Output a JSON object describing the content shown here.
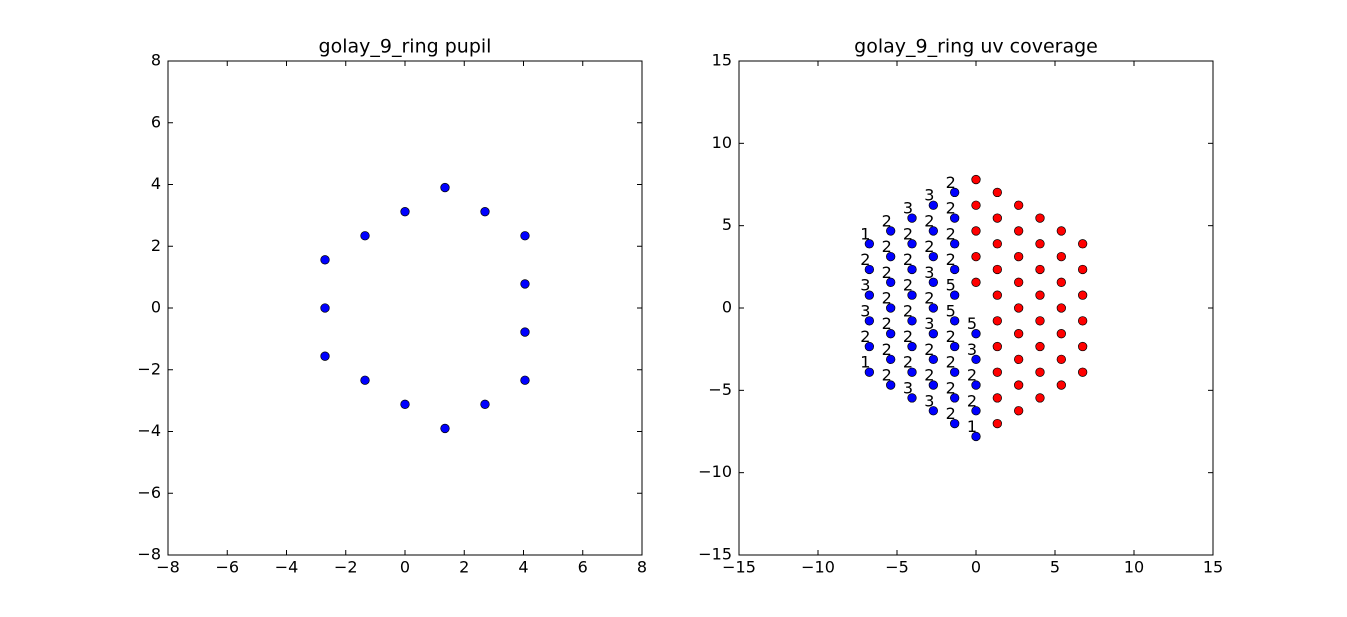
{
  "chart_data": [
    {
      "type": "scatter",
      "title": "golay_9_ring pupil",
      "xlim": [
        -8,
        8
      ],
      "ylim": [
        -8,
        8
      ],
      "xticks": [
        {
          "value": -8,
          "label": "−8"
        },
        {
          "value": -6,
          "label": "−6"
        },
        {
          "value": -4,
          "label": "−4"
        },
        {
          "value": -2,
          "label": "−2"
        },
        0,
        2,
        4,
        6,
        8
      ],
      "yticks": [
        {
          "value": -8,
          "label": "−8"
        },
        {
          "value": -6,
          "label": "−6"
        },
        {
          "value": -4,
          "label": "−4"
        },
        {
          "value": -2,
          "label": "−2"
        },
        0,
        2,
        4,
        6,
        8
      ],
      "series": [
        {
          "color": "#0000ff",
          "x": [
            1.35,
            0,
            2.7,
            -1.35,
            4.05,
            -2.7,
            4.05,
            -2.7,
            4.05,
            -2.7,
            -1.35,
            4.05,
            0,
            2.7,
            1.35
          ],
          "values": [
            3.9,
            3.12,
            3.12,
            2.34,
            2.34,
            1.56,
            0.78,
            0,
            -0.78,
            -1.56,
            -2.34,
            -2.34,
            -3.12,
            -3.12,
            -3.9
          ]
        }
      ]
    },
    {
      "type": "scatter",
      "title": "golay_9_ring uv coverage",
      "xlim": [
        -15,
        15
      ],
      "ylim": [
        -15,
        15
      ],
      "xticks": [
        {
          "value": -15,
          "label": "−15"
        },
        {
          "value": -10,
          "label": "−10"
        },
        {
          "value": -5,
          "label": "−5"
        },
        0,
        5,
        10,
        15
      ],
      "yticks": [
        {
          "value": -15,
          "label": "−15"
        },
        {
          "value": -10,
          "label": "−10"
        },
        {
          "value": -5,
          "label": "−5"
        },
        0,
        5,
        10,
        15
      ],
      "series": [
        {
          "color": "#0000ff",
          "x": [
            -6.75,
            -6.75,
            -6.75,
            -6.75,
            -6.75,
            -6.75,
            -5.4,
            -5.4,
            -5.4,
            -5.4,
            -5.4,
            -5.4,
            -5.4,
            -4.05,
            -4.05,
            -4.05,
            -4.05,
            -4.05,
            -4.05,
            -4.05,
            -4.05,
            -2.7,
            -2.7,
            -2.7,
            -2.7,
            -2.7,
            -2.7,
            -2.7,
            -2.7,
            -2.7,
            -1.35,
            -1.35,
            -1.35,
            -1.35,
            -1.35,
            -1.35,
            -1.35,
            -1.35,
            -1.35,
            -1.35,
            0,
            0,
            0,
            0,
            0
          ],
          "values": [
            3.9,
            2.34,
            0.78,
            -0.78,
            -2.34,
            -3.9,
            4.68,
            3.12,
            1.56,
            0,
            -1.56,
            -3.12,
            -4.68,
            5.46,
            3.9,
            2.34,
            0.78,
            -0.78,
            -2.34,
            -3.9,
            -5.46,
            6.24,
            4.68,
            3.12,
            1.56,
            0,
            -1.56,
            -3.12,
            -4.68,
            -6.24,
            7.02,
            5.46,
            3.9,
            2.34,
            0.78,
            -0.78,
            -2.34,
            -3.9,
            -5.46,
            -7.02,
            -1.56,
            -3.12,
            -4.68,
            -6.24,
            -7.8
          ],
          "point_labels": [
            1,
            2,
            3,
            3,
            2,
            1,
            2,
            2,
            2,
            2,
            2,
            2,
            2,
            3,
            2,
            2,
            2,
            2,
            2,
            2,
            3,
            3,
            2,
            2,
            3,
            2,
            3,
            2,
            2,
            3,
            2,
            2,
            2,
            2,
            5,
            5,
            2,
            2,
            2,
            2,
            5,
            3,
            2,
            2,
            1
          ]
        },
        {
          "color": "#ff0000",
          "x": [
            0,
            0,
            0,
            0,
            0,
            1.35,
            1.35,
            1.35,
            1.35,
            1.35,
            1.35,
            1.35,
            1.35,
            1.35,
            1.35,
            2.7,
            2.7,
            2.7,
            2.7,
            2.7,
            2.7,
            2.7,
            2.7,
            2.7,
            4.05,
            4.05,
            4.05,
            4.05,
            4.05,
            4.05,
            4.05,
            4.05,
            5.4,
            5.4,
            5.4,
            5.4,
            5.4,
            5.4,
            5.4,
            6.75,
            6.75,
            6.75,
            6.75,
            6.75,
            6.75
          ],
          "values": [
            7.8,
            6.24,
            4.68,
            3.12,
            1.56,
            7.02,
            5.46,
            3.9,
            2.34,
            0.78,
            -0.78,
            -2.34,
            -3.9,
            -5.46,
            -7.02,
            6.24,
            4.68,
            3.12,
            1.56,
            0,
            -1.56,
            -3.12,
            -4.68,
            -6.24,
            5.46,
            3.9,
            2.34,
            0.78,
            -0.78,
            -2.34,
            -3.9,
            -5.46,
            4.68,
            3.12,
            1.56,
            0,
            -1.56,
            -3.12,
            -4.68,
            3.9,
            2.34,
            0.78,
            -0.78,
            -2.34,
            -3.9
          ]
        }
      ]
    }
  ]
}
